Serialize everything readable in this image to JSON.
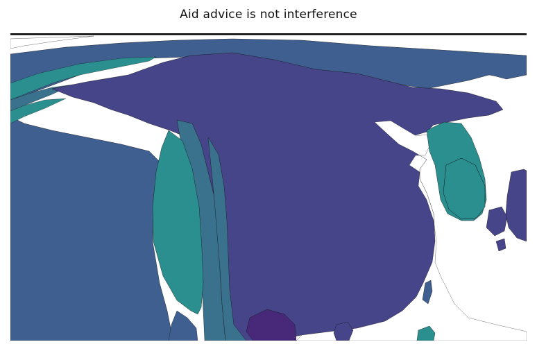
{
  "title": "Aid advice is not interference",
  "map": {
    "type": "choropleth",
    "projection": "cylindrical-cropped",
    "region_outline_color": "#111111",
    "background_color": "#ffffff",
    "top_border_color": "#000000",
    "palette": {
      "dark_purple": "#482878",
      "indigo": "#46458a",
      "blue_slate": "#3e5f8f",
      "teal_blue": "#3a718c",
      "teal": "#2b8e8f"
    }
  }
}
